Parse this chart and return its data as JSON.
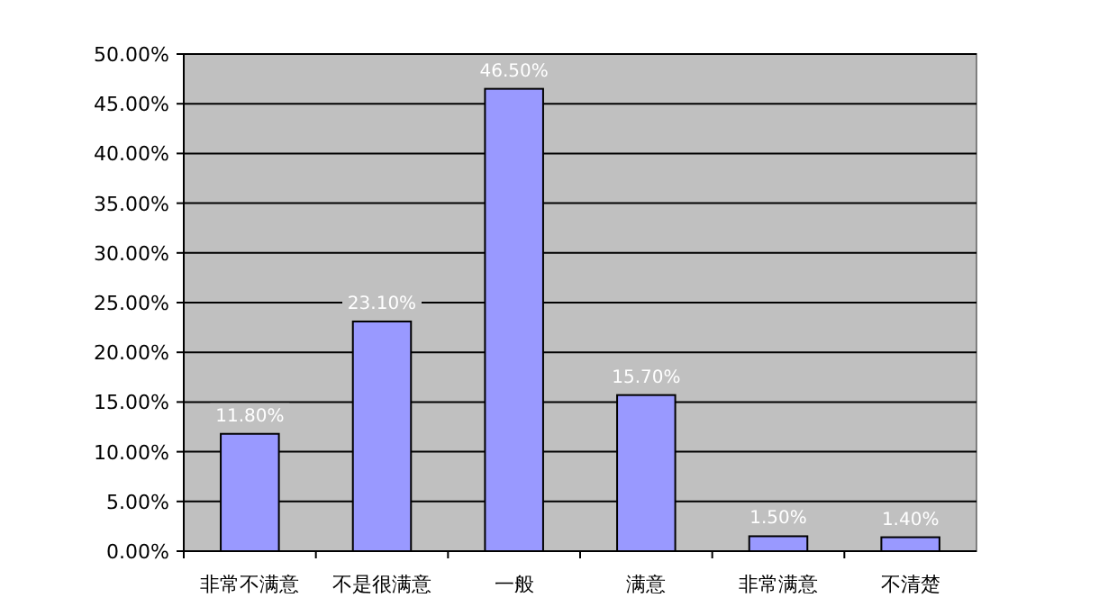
{
  "chart_data": {
    "type": "bar",
    "categories": [
      "非常不满意",
      "不是很满意",
      "一般",
      "满意",
      "非常满意",
      "不清楚"
    ],
    "values": [
      11.8,
      23.1,
      46.5,
      15.7,
      1.5,
      1.4
    ],
    "value_labels": [
      "11.80%",
      "23.10%",
      "46.50%",
      "15.70%",
      "1.50%",
      "1.40%"
    ],
    "color": "#9999ff",
    "ylim": [
      0,
      50
    ],
    "yticks": [
      {
        "value": 0,
        "label": "0.00%"
      },
      {
        "value": 5,
        "label": "5.00%"
      },
      {
        "value": 10,
        "label": "10.00%"
      },
      {
        "value": 15,
        "label": "15.00%"
      },
      {
        "value": 20,
        "label": "20.00%"
      },
      {
        "value": 25,
        "label": "25.00%"
      },
      {
        "value": 30,
        "label": "30.00%"
      },
      {
        "value": 35,
        "label": "35.00%"
      },
      {
        "value": 40,
        "label": "40.00%"
      },
      {
        "value": 45,
        "label": "45.00%"
      },
      {
        "value": 50,
        "label": "50.00%"
      }
    ],
    "grid": "y"
  }
}
